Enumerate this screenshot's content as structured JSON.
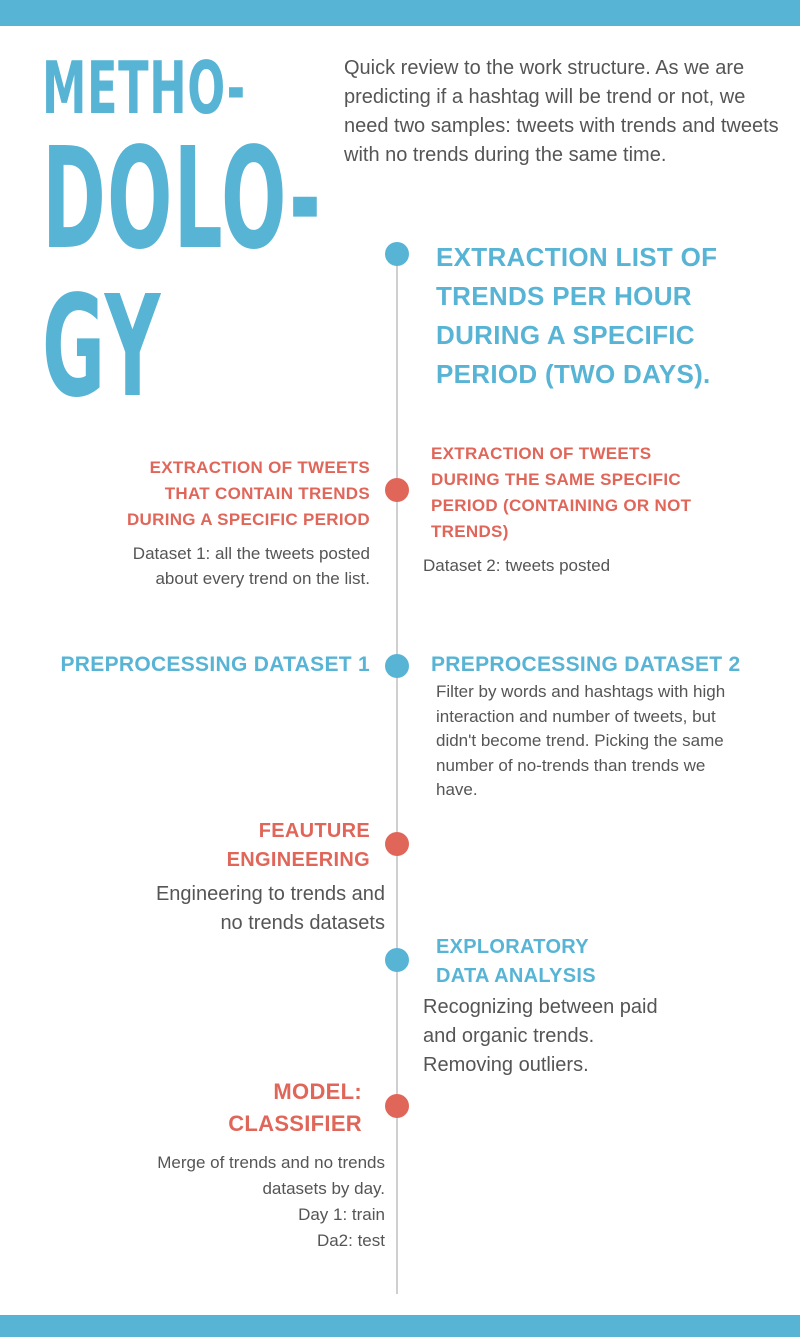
{
  "title": {
    "line1": "METHO-",
    "line2": "DOLO-",
    "line3": "GY"
  },
  "intro": "Quick review to the work structure. As we are predicting if a hashtag will be trend or not, we need  two samples: tweets with trends and tweets with no trends during the same time.",
  "steps": {
    "s1": {
      "heading": "EXTRACTION LIST OF TRENDS PER HOUR DURING A SPECIFIC PERIOD (TWO DAYS)."
    },
    "s2a": {
      "heading": "EXTRACTION OF TWEETS THAT CONTAIN TRENDS DURING A SPECIFIC PERIOD",
      "desc": "Dataset 1: all the tweets posted about every trend on the list."
    },
    "s2b": {
      "heading": "EXTRACTION OF TWEETS DURING THE SAME SPECIFIC PERIOD (CONTAINING OR NOT TRENDS)",
      "desc": "Dataset 2: tweets posted"
    },
    "s3a": {
      "heading": "PREPROCESSING DATASET 1"
    },
    "s3b": {
      "heading": "PREPROCESSING DATASET 2",
      "desc": "Filter by  words and hashtags with high interaction and number of tweets, but didn't become trend. Picking the same number of no-trends than trends we have."
    },
    "s4": {
      "heading_l1": "FEAUTURE",
      "heading_l2": "ENGINEERING",
      "desc_l1": "Engineering to trends and",
      "desc_l2": "no trends datasets"
    },
    "s5": {
      "heading_l1": "EXPLORATORY",
      "heading_l2": "DATA ANALYSIS",
      "desc_l1": "Recognizing between paid",
      "desc_l2": "and organic trends.",
      "desc_l3": "Removing outliers."
    },
    "s6": {
      "heading_l1": "MODEL:",
      "heading_l2": "CLASSIFIER",
      "desc_l1": "Merge of trends and no trends",
      "desc_l2": "datasets by day.",
      "desc_l3": "Day 1: train",
      "desc_l4": "Da2: test"
    }
  },
  "colors": {
    "blue": "#57b4d5",
    "red": "#e0665a",
    "line": "#cfcfcf",
    "text": "#555555"
  }
}
